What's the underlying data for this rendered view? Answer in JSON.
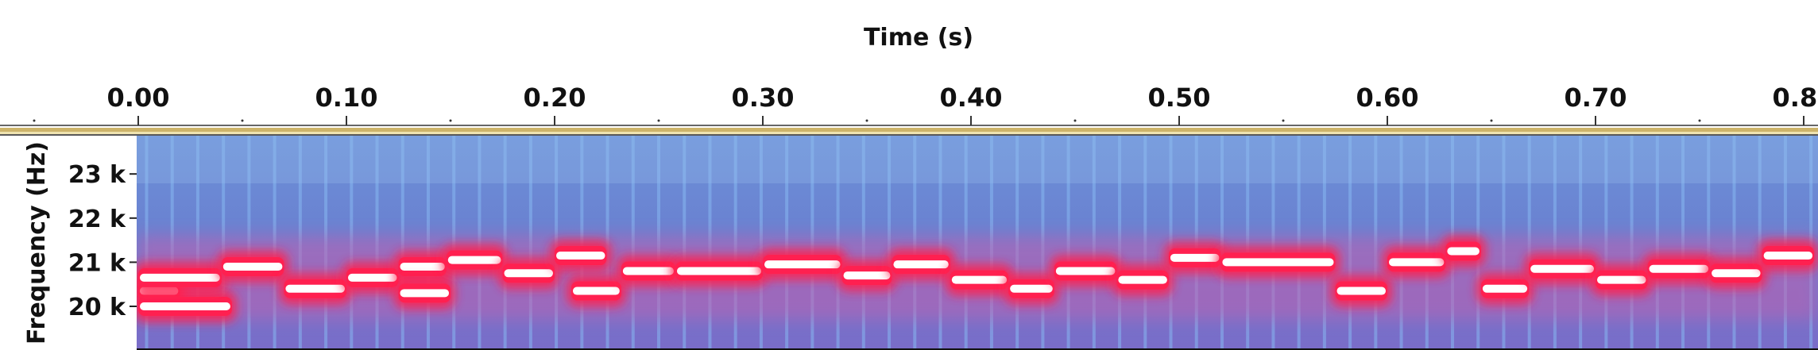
{
  "chart_data": {
    "type": "heatmap",
    "xlabel": "Time (s)",
    "ylabel": "Frequency (Hz)",
    "x_ticks": [
      {
        "value": 0.0,
        "label": "0.00"
      },
      {
        "value": 0.1,
        "label": "0.10"
      },
      {
        "value": 0.2,
        "label": "0.20"
      },
      {
        "value": 0.3,
        "label": "0.30"
      },
      {
        "value": 0.4,
        "label": "0.40"
      },
      {
        "value": 0.5,
        "label": "0.50"
      },
      {
        "value": 0.6,
        "label": "0.60"
      },
      {
        "value": 0.7,
        "label": "0.70"
      },
      {
        "value": 0.8,
        "label": "0.80"
      }
    ],
    "y_ticks": [
      {
        "value": 20000,
        "label": "20 k"
      },
      {
        "value": 21000,
        "label": "21 k"
      },
      {
        "value": 22000,
        "label": "22 k"
      },
      {
        "value": 23000,
        "label": "23 k"
      }
    ],
    "xlim": [
      0.0,
      0.805
    ],
    "ylim": [
      19200,
      24000
    ],
    "tone_segments": [
      {
        "t0": 0.0,
        "t1": 0.02,
        "f": 20350
      },
      {
        "t0": 0.0,
        "t1": 0.045,
        "f": 20000
      },
      {
        "t0": 0.0,
        "t1": 0.04,
        "f": 20650
      },
      {
        "t0": 0.04,
        "t1": 0.07,
        "f": 20900
      },
      {
        "t0": 0.07,
        "t1": 0.1,
        "f": 20400
      },
      {
        "t0": 0.1,
        "t1": 0.125,
        "f": 20650
      },
      {
        "t0": 0.125,
        "t1": 0.148,
        "f": 20900
      },
      {
        "t0": 0.125,
        "t1": 0.15,
        "f": 20300
      },
      {
        "t0": 0.148,
        "t1": 0.175,
        "f": 21050
      },
      {
        "t0": 0.175,
        "t1": 0.2,
        "f": 20750
      },
      {
        "t0": 0.2,
        "t1": 0.225,
        "f": 21150
      },
      {
        "t0": 0.208,
        "t1": 0.232,
        "f": 20350
      },
      {
        "t0": 0.232,
        "t1": 0.258,
        "f": 20800
      },
      {
        "t0": 0.258,
        "t1": 0.3,
        "f": 20800
      },
      {
        "t0": 0.3,
        "t1": 0.338,
        "f": 20950
      },
      {
        "t0": 0.338,
        "t1": 0.362,
        "f": 20700
      },
      {
        "t0": 0.362,
        "t1": 0.39,
        "f": 20950
      },
      {
        "t0": 0.39,
        "t1": 0.418,
        "f": 20600
      },
      {
        "t0": 0.418,
        "t1": 0.44,
        "f": 20400
      },
      {
        "t0": 0.44,
        "t1": 0.47,
        "f": 20800
      },
      {
        "t0": 0.47,
        "t1": 0.495,
        "f": 20600
      },
      {
        "t0": 0.495,
        "t1": 0.52,
        "f": 21100
      },
      {
        "t0": 0.52,
        "t1": 0.575,
        "f": 21000
      },
      {
        "t0": 0.575,
        "t1": 0.6,
        "f": 20350
      },
      {
        "t0": 0.6,
        "t1": 0.628,
        "f": 21000
      },
      {
        "t0": 0.628,
        "t1": 0.645,
        "f": 21250
      },
      {
        "t0": 0.645,
        "t1": 0.668,
        "f": 20400
      },
      {
        "t0": 0.668,
        "t1": 0.7,
        "f": 20850
      },
      {
        "t0": 0.7,
        "t1": 0.725,
        "f": 20600
      },
      {
        "t0": 0.725,
        "t1": 0.755,
        "f": 20850
      },
      {
        "t0": 0.755,
        "t1": 0.78,
        "f": 20750
      },
      {
        "t0": 0.78,
        "t1": 0.805,
        "f": 21150
      }
    ],
    "colors": {
      "background": "#5f7fd0",
      "harmonic": "#86b8f0",
      "band_glow": "#c060b0",
      "tone_outer": "#ff2050",
      "tone_core": "#ffffff",
      "ruler_line": "#c9b06a"
    },
    "grid": false
  }
}
